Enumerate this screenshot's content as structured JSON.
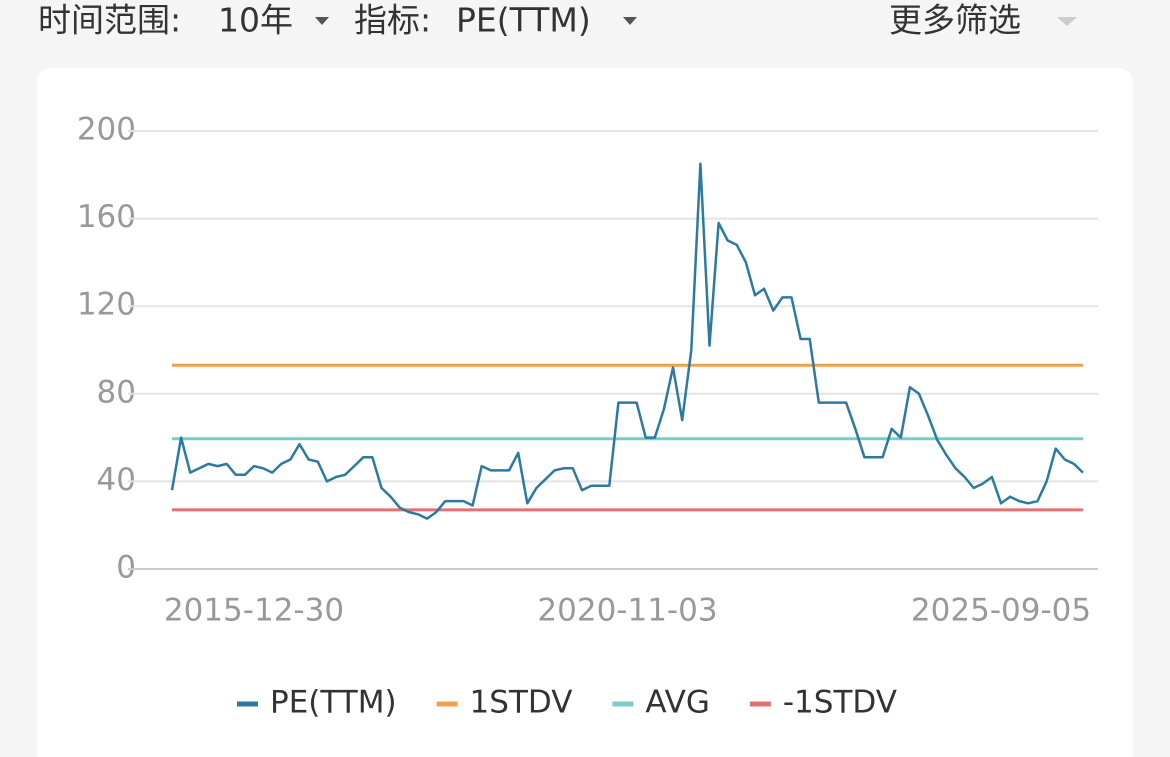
{
  "header": {
    "filters": [
      {
        "label": "时间范围:",
        "value": "10年"
      },
      {
        "label": "指标:",
        "value": "PE(TTM)"
      }
    ],
    "more": "更多筛选"
  },
  "chart_data": {
    "type": "line",
    "categories": [
      null,
      null,
      null,
      null,
      null,
      null,
      null,
      null,
      null,
      "2015-12-30",
      null,
      null,
      null,
      null,
      null,
      null,
      null,
      null,
      null,
      null,
      null,
      null,
      null,
      null,
      null,
      null,
      null,
      null,
      null,
      null,
      null,
      null,
      null,
      null,
      null,
      null,
      null,
      null,
      null,
      null,
      null,
      null,
      null,
      null,
      null,
      null,
      null,
      null,
      null,
      null,
      "2020-11-03",
      null,
      null,
      null,
      null,
      null,
      null,
      null,
      null,
      null,
      null,
      null,
      null,
      null,
      null,
      null,
      null,
      null,
      null,
      null,
      null,
      null,
      null,
      null,
      null,
      null,
      null,
      null,
      null,
      null,
      null,
      null,
      null,
      null,
      null,
      null,
      null,
      null,
      null,
      null,
      null,
      "2025-09-05",
      null,
      null,
      null,
      null,
      null,
      null,
      null,
      null,
      null
    ],
    "series": [
      {
        "name": "PE(TTM)",
        "color": "#2b7aa1",
        "values": [
          36,
          60,
          44,
          46,
          48,
          47,
          48,
          43,
          43,
          47,
          46,
          44,
          48,
          50,
          57,
          50,
          49,
          40,
          42,
          43,
          47,
          51,
          51,
          37,
          33,
          28,
          26,
          25,
          23,
          26,
          31,
          31,
          31,
          29,
          47,
          45,
          45,
          45,
          53,
          30,
          37,
          41,
          45,
          46,
          46,
          36,
          38,
          38,
          38,
          76,
          76,
          76,
          60,
          60,
          73,
          92,
          68,
          100,
          185,
          102,
          158,
          150,
          148,
          140,
          125,
          128,
          118,
          124,
          124,
          105,
          105,
          76,
          76,
          76,
          76,
          64,
          51,
          51,
          51,
          64,
          60,
          83,
          80,
          70,
          59,
          52,
          46,
          42,
          37,
          39,
          42,
          30,
          33,
          31,
          30,
          31,
          40,
          55,
          50,
          48,
          44
        ]
      },
      {
        "name": "1STDV",
        "color": "#f0a04b",
        "values": [
          93,
          93,
          93,
          93,
          93,
          93,
          93,
          93,
          93,
          93,
          93,
          93,
          93,
          93,
          93,
          93,
          93,
          93,
          93,
          93,
          93,
          93,
          93,
          93,
          93,
          93,
          93,
          93,
          93,
          93,
          93,
          93,
          93,
          93,
          93,
          93,
          93,
          93,
          93,
          93,
          93,
          93,
          93,
          93,
          93,
          93,
          93,
          93,
          93,
          93,
          93,
          93,
          93,
          93,
          93,
          93,
          93,
          93,
          93,
          93,
          93,
          93,
          93,
          93,
          93,
          93,
          93,
          93,
          93,
          93,
          93,
          93,
          93,
          93,
          93,
          93,
          93,
          93,
          93,
          93,
          93,
          93,
          93,
          93,
          93,
          93,
          93,
          93,
          93,
          93,
          93,
          93,
          93,
          93,
          93,
          93,
          93,
          93,
          93,
          93,
          93
        ]
      },
      {
        "name": "AVG",
        "color": "#7ccbcc",
        "values": [
          59.5,
          59.5,
          59.5,
          59.5,
          59.5,
          59.5,
          59.5,
          59.5,
          59.5,
          59.5,
          59.5,
          59.5,
          59.5,
          59.5,
          59.5,
          59.5,
          59.5,
          59.5,
          59.5,
          59.5,
          59.5,
          59.5,
          59.5,
          59.5,
          59.5,
          59.5,
          59.5,
          59.5,
          59.5,
          59.5,
          59.5,
          59.5,
          59.5,
          59.5,
          59.5,
          59.5,
          59.5,
          59.5,
          59.5,
          59.5,
          59.5,
          59.5,
          59.5,
          59.5,
          59.5,
          59.5,
          59.5,
          59.5,
          59.5,
          59.5,
          59.5,
          59.5,
          59.5,
          59.5,
          59.5,
          59.5,
          59.5,
          59.5,
          59.5,
          59.5,
          59.5,
          59.5,
          59.5,
          59.5,
          59.5,
          59.5,
          59.5,
          59.5,
          59.5,
          59.5,
          59.5,
          59.5,
          59.5,
          59.5,
          59.5,
          59.5,
          59.5,
          59.5,
          59.5,
          59.5,
          59.5,
          59.5,
          59.5,
          59.5,
          59.5,
          59.5,
          59.5,
          59.5,
          59.5,
          59.5,
          59.5,
          59.5,
          59.5,
          59.5,
          59.5,
          59.5,
          59.5,
          59.5,
          59.5,
          59.5,
          59.5
        ]
      },
      {
        "name": "-1STDV",
        "color": "#e07272",
        "values": [
          27,
          27,
          27,
          27,
          27,
          27,
          27,
          27,
          27,
          27,
          27,
          27,
          27,
          27,
          27,
          27,
          27,
          27,
          27,
          27,
          27,
          27,
          27,
          27,
          27,
          27,
          27,
          27,
          27,
          27,
          27,
          27,
          27,
          27,
          27,
          27,
          27,
          27,
          27,
          27,
          27,
          27,
          27,
          27,
          27,
          27,
          27,
          27,
          27,
          27,
          27,
          27,
          27,
          27,
          27,
          27,
          27,
          27,
          27,
          27,
          27,
          27,
          27,
          27,
          27,
          27,
          27,
          27,
          27,
          27,
          27,
          27,
          27,
          27,
          27,
          27,
          27,
          27,
          27,
          27,
          27,
          27,
          27,
          27,
          27,
          27,
          27,
          27,
          27,
          27,
          27,
          27,
          27,
          27,
          27,
          27,
          27,
          27,
          27,
          27,
          27
        ]
      }
    ],
    "ylim": [
      0,
      200
    ],
    "yticks": [
      0,
      40,
      80,
      120,
      160,
      200
    ],
    "grid": true,
    "legend": "bottom"
  }
}
